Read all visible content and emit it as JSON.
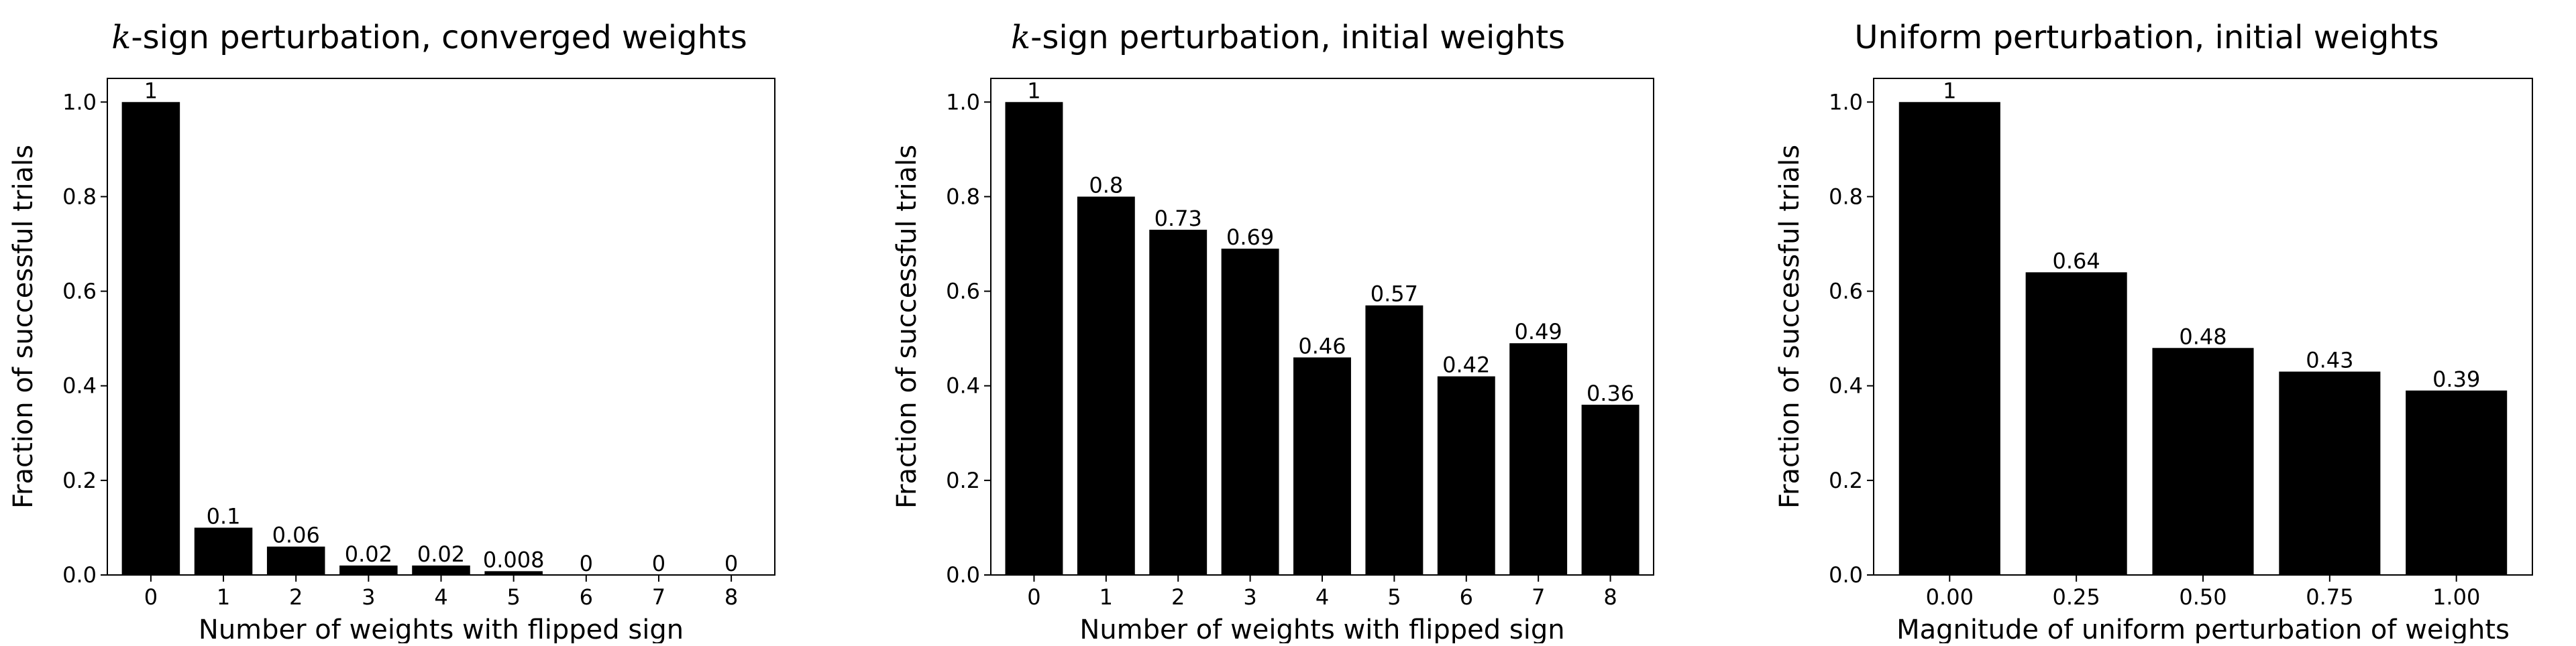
{
  "chart_data": [
    {
      "type": "bar",
      "title_var": "k",
      "title": "-sign perturbation, converged weights",
      "xlabel": "Number of weights with flipped sign",
      "ylabel": "Fraction of successful trials",
      "categories": [
        "0",
        "1",
        "2",
        "3",
        "4",
        "5",
        "6",
        "7",
        "8"
      ],
      "values": [
        1,
        0.1,
        0.06,
        0.02,
        0.02,
        0.008,
        0,
        0,
        0
      ],
      "data_labels": [
        "1",
        "0.1",
        "0.06",
        "0.02",
        "0.02",
        "0.008",
        "0",
        "0",
        "0"
      ],
      "yticks": [
        "0.0",
        "0.2",
        "0.4",
        "0.6",
        "0.8",
        "1.0"
      ],
      "ylim": [
        0,
        1.05
      ],
      "bar_color": "#000000",
      "grid": false
    },
    {
      "type": "bar",
      "title_var": "k",
      "title": "-sign perturbation, initial weights",
      "xlabel": "Number of weights with flipped sign",
      "ylabel": "Fraction of successful trials",
      "categories": [
        "0",
        "1",
        "2",
        "3",
        "4",
        "5",
        "6",
        "7",
        "8"
      ],
      "values": [
        1,
        0.8,
        0.73,
        0.69,
        0.46,
        0.57,
        0.42,
        0.49,
        0.36
      ],
      "data_labels": [
        "1",
        "0.8",
        "0.73",
        "0.69",
        "0.46",
        "0.57",
        "0.42",
        "0.49",
        "0.36"
      ],
      "yticks": [
        "0.0",
        "0.2",
        "0.4",
        "0.6",
        "0.8",
        "1.0"
      ],
      "ylim": [
        0,
        1.05
      ],
      "bar_color": "#000000",
      "grid": false
    },
    {
      "type": "bar",
      "title_var": "",
      "title": "Uniform perturbation, initial weights",
      "xlabel": "Magnitude of uniform perturbation of weights",
      "ylabel": "Fraction of successful trials",
      "categories": [
        "0.00",
        "0.25",
        "0.50",
        "0.75",
        "1.00"
      ],
      "values": [
        1,
        0.64,
        0.48,
        0.43,
        0.39
      ],
      "data_labels": [
        "1",
        "0.64",
        "0.48",
        "0.43",
        "0.39"
      ],
      "yticks": [
        "0.0",
        "0.2",
        "0.4",
        "0.6",
        "0.8",
        "1.0"
      ],
      "ylim": [
        0,
        1.05
      ],
      "bar_color": "#000000",
      "grid": false
    }
  ]
}
